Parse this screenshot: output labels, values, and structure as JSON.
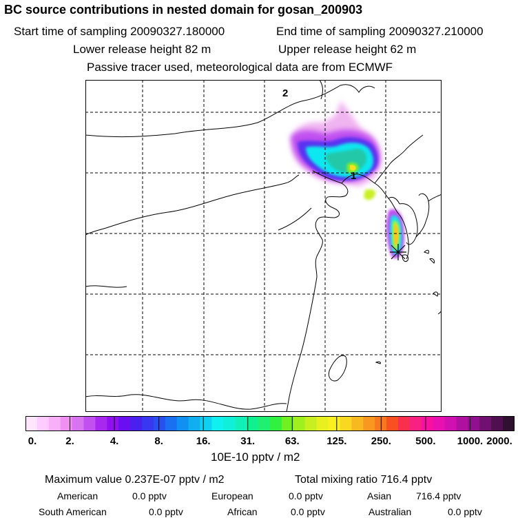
{
  "header": {
    "title": "BC  source contributions in nested domain for gosan_200903",
    "start_label": "Start time of sampling 20090327.180000",
    "end_label": "End time of sampling 20090327.210000",
    "lower_label": "Lower release height   82 m",
    "upper_label": "Upper release height   62 m",
    "info": "Passive tracer used, meteorological data are from ECMWF"
  },
  "map": {
    "label_1": "1",
    "label_2": "2",
    "receptor_icon": "asterisk-star-icon"
  },
  "legend": {
    "ticks": [
      "0.",
      "2.",
      "4.",
      "8.",
      "16.",
      "31.",
      "63.",
      "125.",
      "250.",
      "500.",
      "1000.",
      "2000."
    ],
    "unit": "10E-10 pptv / m2",
    "colors": [
      "#ffe6ff",
      "#ffccff",
      "#f8b0f8",
      "#f090f0",
      "#d874f0",
      "#c050f0",
      "#a828f0",
      "#9010f0",
      "#6a10f0",
      "#4a20f0",
      "#3838f0",
      "#2850f0",
      "#1a70f0",
      "#1090f0",
      "#10b0f0",
      "#10d0f0",
      "#10f0f0",
      "#10f0d8",
      "#10f0b8",
      "#10f090",
      "#20f070",
      "#30f040",
      "#70f020",
      "#a0f020",
      "#c8f020",
      "#e8f020",
      "#f8f020",
      "#f8d820",
      "#f8b820",
      "#f89820",
      "#f87820",
      "#f85020",
      "#f83050",
      "#f82080",
      "#f810a0",
      "#e810b0",
      "#d010b0",
      "#b010a0",
      "#901090",
      "#701070",
      "#501050",
      "#301030"
    ]
  },
  "stats": {
    "max_label": "Maximum value  0.237E-07 pptv / m2",
    "total_label": "Total mixing ratio      716.4 pptv",
    "american": "American",
    "american_val": "0.0 pptv",
    "european": "European",
    "european_val": "0.0 pptv",
    "asian": "Asian",
    "asian_val": "716.4 pptv",
    "south_american": "South American",
    "south_american_val": "0.0 pptv",
    "african": "African",
    "african_val": "0.0 pptv",
    "australian": "Australian",
    "australian_val": "0.0 pptv"
  }
}
